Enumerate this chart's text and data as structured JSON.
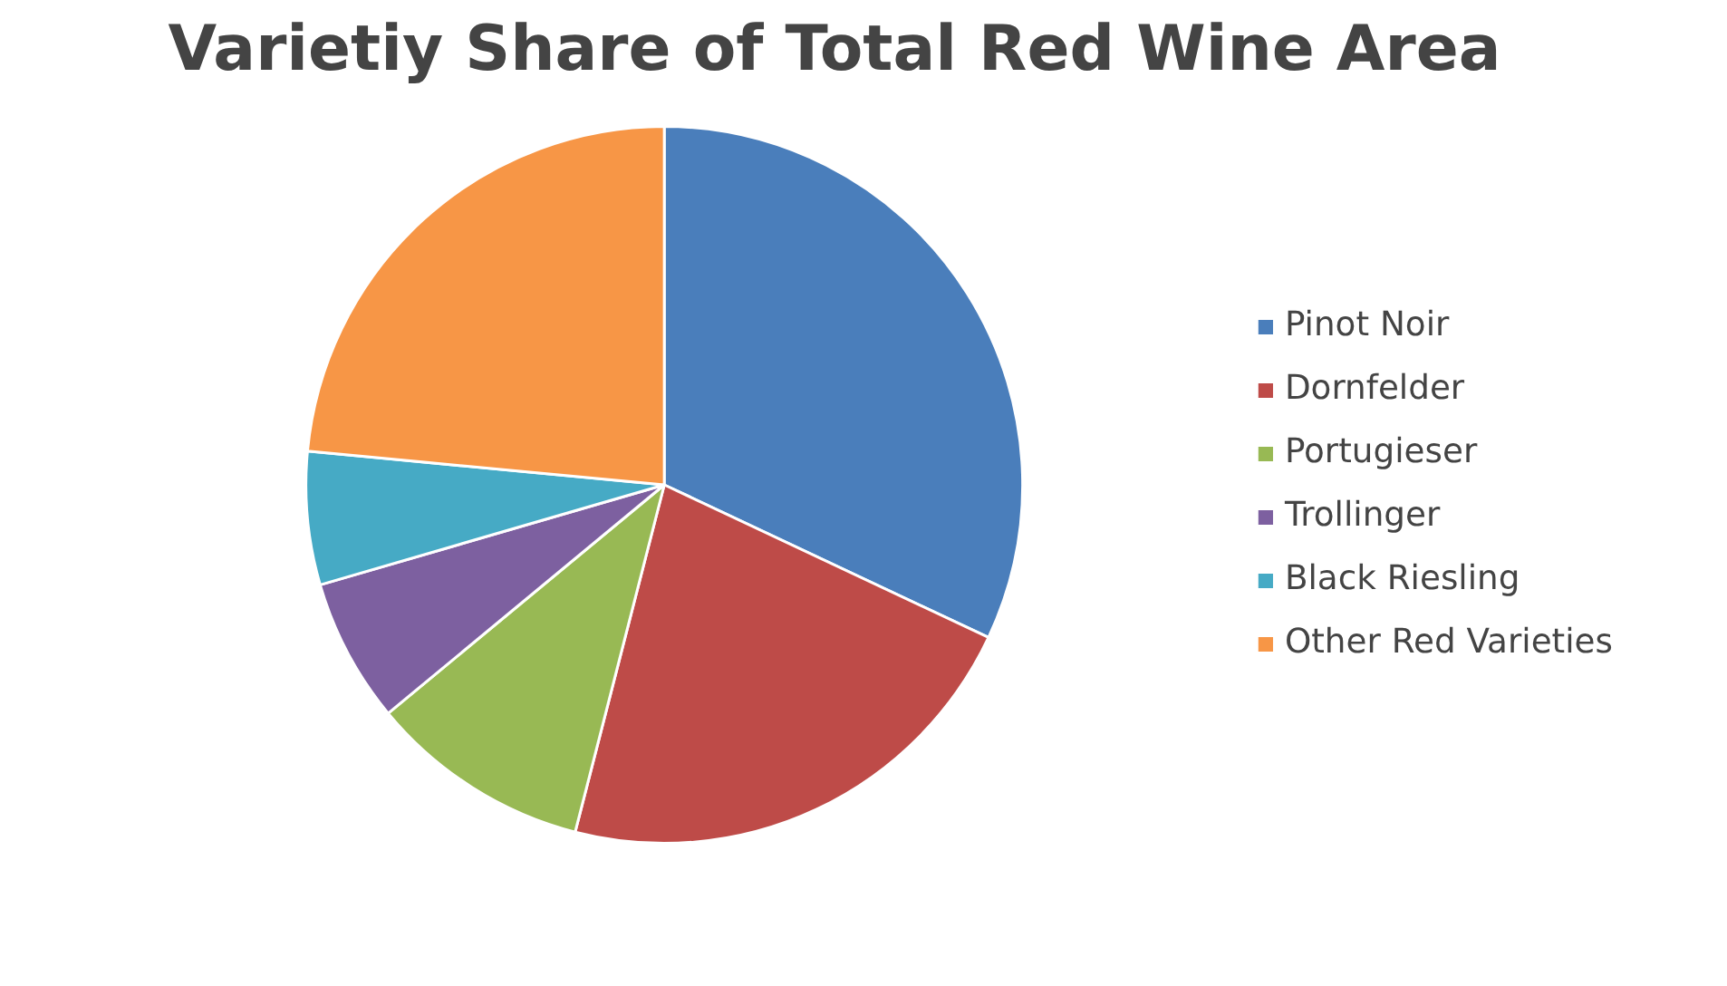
{
  "chart_data": {
    "type": "pie",
    "title": "Varietiy Share of Total Red Wine Area",
    "categories": [
      "Pinot Noir",
      "Dornfelder",
      "Portugieser",
      "Trollinger",
      "Black Riesling",
      "Other Red Varieties"
    ],
    "values": [
      32,
      22,
      10,
      6.5,
      6,
      23.5
    ],
    "colors": [
      "#4a7ebb",
      "#be4b48",
      "#98b954",
      "#7d60a0",
      "#46aac5",
      "#f79646"
    ],
    "legend": "right"
  }
}
